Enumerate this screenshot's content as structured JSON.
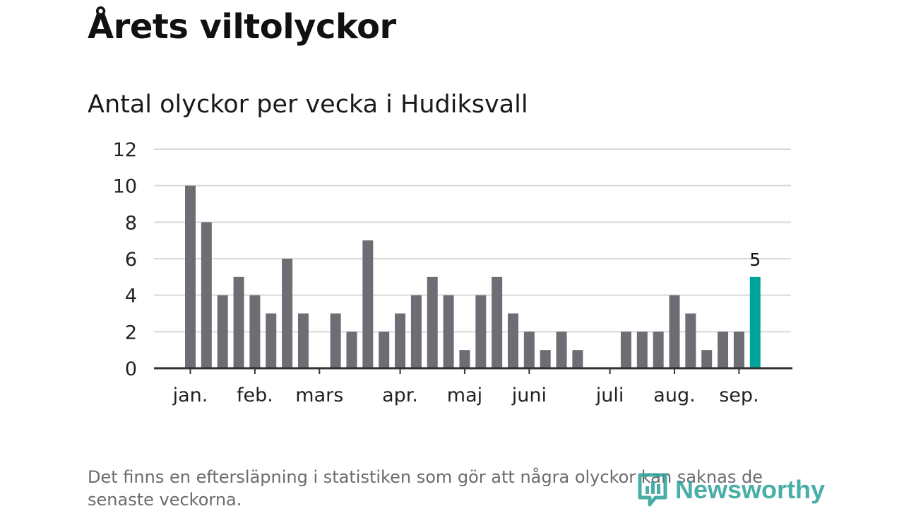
{
  "header": {
    "title": "Årets viltolyckor",
    "subtitle": "Antal olyckor per vecka i Hudiksvall"
  },
  "footnote": "Det finns en eftersläpning i statistiken som gör att några olyckor kan saknas de senaste veckorna.",
  "brand": {
    "name": "Newsworthy",
    "icon": "bar-chart-logo-icon",
    "color": "#2aa198"
  },
  "chart_data": {
    "type": "bar",
    "title": "Antal olyckor per vecka i Hudiksvall",
    "xlabel": "",
    "ylabel": "",
    "ylim": [
      0,
      12
    ],
    "yticks": [
      0,
      2,
      4,
      6,
      8,
      10,
      12
    ],
    "grid": true,
    "legend": "none",
    "values": [
      10,
      8,
      4,
      5,
      4,
      3,
      6,
      3,
      0,
      3,
      2,
      7,
      2,
      3,
      4,
      5,
      4,
      1,
      4,
      5,
      3,
      2,
      1,
      2,
      1,
      0,
      0,
      2,
      2,
      2,
      4,
      3,
      1,
      2,
      2,
      5
    ],
    "highlight_index": 35,
    "highlight_label": "5",
    "month_labels": [
      {
        "label": "jan.",
        "week_index": 0
      },
      {
        "label": "feb.",
        "week_index": 4
      },
      {
        "label": "mars",
        "week_index": 8
      },
      {
        "label": "apr.",
        "week_index": 13
      },
      {
        "label": "maj",
        "week_index": 17
      },
      {
        "label": "juni",
        "week_index": 21
      },
      {
        "label": "juli",
        "week_index": 26
      },
      {
        "label": "aug.",
        "week_index": 30
      },
      {
        "label": "sep.",
        "week_index": 34
      }
    ],
    "colors": {
      "bar": "#6e6d73",
      "highlight": "#00a39a",
      "grid": "#d9d9d9",
      "axis": "#333333"
    }
  }
}
